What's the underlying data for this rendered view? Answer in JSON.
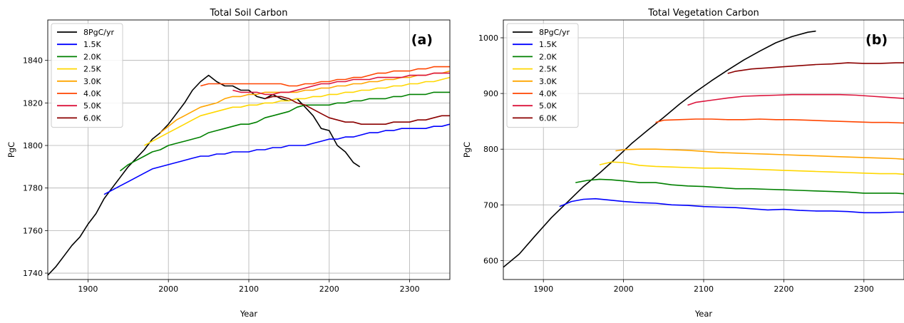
{
  "chart_data": [
    {
      "type": "line",
      "title": "Total Soil Carbon",
      "panel_label": "(a)",
      "xlabel": "Year",
      "ylabel": "PgC",
      "xlim": [
        1850,
        2350
      ],
      "ylim": [
        1737,
        1859
      ],
      "xticks": [
        1900,
        2000,
        2100,
        2200,
        2300
      ],
      "yticks": [
        1740,
        1760,
        1780,
        1800,
        1820,
        1840
      ],
      "grid": true,
      "legend_position": "top-left",
      "series": [
        {
          "name": "8PgC/yr",
          "color": "#000000",
          "x": [
            1850,
            1860,
            1870,
            1880,
            1890,
            1900,
            1910,
            1920,
            1930,
            1940,
            1950,
            1960,
            1970,
            1980,
            1990,
            2000,
            2010,
            2020,
            2030,
            2040,
            2050,
            2060,
            2070,
            2080,
            2090,
            2100,
            2110,
            2120,
            2130,
            2140,
            2150,
            2160,
            2170,
            2180,
            2190,
            2200,
            2210,
            2220,
            2230,
            2238
          ],
          "y": [
            1739,
            1743,
            1748,
            1753,
            1757,
            1763,
            1768,
            1775,
            1780,
            1785,
            1790,
            1794,
            1798,
            1803,
            1806,
            1810,
            1815,
            1820,
            1826,
            1830,
            1833,
            1830,
            1828,
            1828,
            1826,
            1826,
            1823,
            1822,
            1824,
            1822,
            1821,
            1822,
            1818,
            1814,
            1808,
            1807,
            1800,
            1797,
            1792,
            1790
          ]
        },
        {
          "name": "1.5K",
          "color": "#0000ff",
          "x": [
            1920,
            1930,
            1940,
            1950,
            1960,
            1970,
            1980,
            1990,
            2000,
            2010,
            2020,
            2030,
            2040,
            2050,
            2060,
            2070,
            2080,
            2090,
            2100,
            2110,
            2120,
            2130,
            2140,
            2150,
            2160,
            2170,
            2180,
            2190,
            2200,
            2210,
            2220,
            2230,
            2240,
            2250,
            2260,
            2270,
            2280,
            2290,
            2300,
            2310,
            2320,
            2330,
            2340,
            2350
          ],
          "y": [
            1777,
            1779,
            1781,
            1783,
            1785,
            1787,
            1789,
            1790,
            1791,
            1792,
            1793,
            1794,
            1795,
            1795,
            1796,
            1796,
            1797,
            1797,
            1797,
            1798,
            1798,
            1799,
            1799,
            1800,
            1800,
            1800,
            1801,
            1802,
            1803,
            1803,
            1804,
            1804,
            1805,
            1806,
            1806,
            1807,
            1807,
            1808,
            1808,
            1808,
            1808,
            1809,
            1809,
            1810
          ]
        },
        {
          "name": "2.0K",
          "color": "#008000",
          "x": [
            1940,
            1950,
            1960,
            1970,
            1980,
            1990,
            2000,
            2010,
            2020,
            2030,
            2040,
            2050,
            2060,
            2070,
            2080,
            2090,
            2100,
            2110,
            2120,
            2130,
            2140,
            2150,
            2160,
            2170,
            2180,
            2190,
            2200,
            2210,
            2220,
            2230,
            2240,
            2250,
            2260,
            2270,
            2280,
            2290,
            2300,
            2310,
            2320,
            2330,
            2340,
            2350
          ],
          "y": [
            1788,
            1791,
            1793,
            1795,
            1797,
            1798,
            1800,
            1801,
            1802,
            1803,
            1804,
            1806,
            1807,
            1808,
            1809,
            1810,
            1810,
            1811,
            1813,
            1814,
            1815,
            1816,
            1818,
            1819,
            1819,
            1819,
            1819,
            1820,
            1820,
            1821,
            1821,
            1822,
            1822,
            1822,
            1823,
            1823,
            1824,
            1824,
            1824,
            1825,
            1825,
            1825
          ]
        },
        {
          "name": "2.5K",
          "color": "#ffd700",
          "x": [
            1970,
            1980,
            1990,
            2000,
            2010,
            2020,
            2030,
            2040,
            2050,
            2060,
            2070,
            2080,
            2090,
            2100,
            2110,
            2120,
            2130,
            2140,
            2150,
            2160,
            2170,
            2180,
            2190,
            2200,
            2210,
            2220,
            2230,
            2240,
            2250,
            2260,
            2270,
            2280,
            2290,
            2300,
            2310,
            2320,
            2330,
            2340,
            2350
          ],
          "y": [
            1800,
            1802,
            1804,
            1806,
            1808,
            1810,
            1812,
            1814,
            1815,
            1816,
            1817,
            1818,
            1818,
            1819,
            1819,
            1820,
            1820,
            1821,
            1821,
            1822,
            1822,
            1823,
            1823,
            1824,
            1824,
            1825,
            1825,
            1826,
            1826,
            1827,
            1827,
            1828,
            1828,
            1829,
            1829,
            1830,
            1830,
            1831,
            1832
          ]
        },
        {
          "name": "3.0K",
          "color": "#ffa500",
          "x": [
            1990,
            2000,
            2010,
            2020,
            2030,
            2040,
            2050,
            2060,
            2070,
            2080,
            2090,
            2100,
            2110,
            2120,
            2130,
            2140,
            2150,
            2160,
            2170,
            2180,
            2190,
            2200,
            2210,
            2220,
            2230,
            2240,
            2250,
            2260,
            2270,
            2280,
            2290,
            2300,
            2310,
            2320,
            2330,
            2340,
            2350
          ],
          "y": [
            1806,
            1809,
            1812,
            1814,
            1816,
            1818,
            1819,
            1820,
            1822,
            1823,
            1823,
            1824,
            1824,
            1825,
            1825,
            1825,
            1825,
            1825,
            1826,
            1826,
            1827,
            1827,
            1828,
            1828,
            1829,
            1829,
            1830,
            1830,
            1831,
            1831,
            1832,
            1832,
            1833,
            1833,
            1834,
            1834,
            1835
          ]
        },
        {
          "name": "4.0K",
          "color": "#ff4500",
          "x": [
            2040,
            2050,
            2060,
            2070,
            2080,
            2090,
            2100,
            2110,
            2120,
            2130,
            2140,
            2150,
            2160,
            2170,
            2180,
            2190,
            2200,
            2210,
            2220,
            2230,
            2240,
            2250,
            2260,
            2270,
            2280,
            2290,
            2300,
            2310,
            2320,
            2330,
            2340,
            2350
          ],
          "y": [
            1828,
            1829,
            1829,
            1829,
            1829,
            1829,
            1829,
            1829,
            1829,
            1829,
            1829,
            1828,
            1828,
            1829,
            1829,
            1830,
            1830,
            1831,
            1831,
            1832,
            1832,
            1833,
            1834,
            1834,
            1835,
            1835,
            1835,
            1836,
            1836,
            1837,
            1837,
            1837
          ]
        },
        {
          "name": "5.0K",
          "color": "#dc143c",
          "x": [
            2080,
            2090,
            2100,
            2110,
            2120,
            2130,
            2140,
            2150,
            2160,
            2170,
            2180,
            2190,
            2200,
            2210,
            2220,
            2230,
            2240,
            2250,
            2260,
            2270,
            2280,
            2290,
            2300,
            2310,
            2320,
            2330,
            2340,
            2350
          ],
          "y": [
            1826,
            1825,
            1825,
            1825,
            1824,
            1824,
            1825,
            1825,
            1826,
            1827,
            1828,
            1829,
            1829,
            1830,
            1830,
            1831,
            1831,
            1831,
            1832,
            1832,
            1832,
            1832,
            1833,
            1833,
            1833,
            1834,
            1834,
            1834
          ]
        },
        {
          "name": "6.0K",
          "color": "#8b0000",
          "x": [
            2120,
            2130,
            2140,
            2150,
            2160,
            2170,
            2180,
            2190,
            2200,
            2210,
            2220,
            2230,
            2240,
            2250,
            2260,
            2270,
            2280,
            2290,
            2300,
            2310,
            2320,
            2330,
            2340,
            2350
          ],
          "y": [
            1822,
            1823,
            1823,
            1822,
            1820,
            1819,
            1817,
            1815,
            1813,
            1812,
            1811,
            1811,
            1810,
            1810,
            1810,
            1810,
            1811,
            1811,
            1811,
            1812,
            1812,
            1813,
            1814,
            1814
          ]
        }
      ]
    },
    {
      "type": "line",
      "title": "Total Vegetation Carbon",
      "panel_label": "(b)",
      "xlabel": "Year",
      "ylabel": "PgC",
      "xlim": [
        1850,
        2350
      ],
      "ylim": [
        566,
        1032
      ],
      "xticks": [
        1900,
        2000,
        2100,
        2200,
        2300
      ],
      "yticks": [
        600,
        700,
        800,
        900,
        1000
      ],
      "grid": true,
      "legend_position": "top-left",
      "series": [
        {
          "name": "8PgC/yr",
          "color": "#000000",
          "x": [
            1850,
            1870,
            1890,
            1910,
            1930,
            1950,
            1970,
            1990,
            2010,
            2030,
            2050,
            2070,
            2090,
            2110,
            2130,
            2150,
            2170,
            2190,
            2210,
            2230,
            2240
          ],
          "y": [
            588,
            612,
            645,
            677,
            705,
            733,
            757,
            783,
            810,
            834,
            857,
            881,
            903,
            923,
            942,
            960,
            976,
            991,
            1002,
            1010,
            1012
          ]
        },
        {
          "name": "1.5K",
          "color": "#0000ff",
          "x": [
            1920,
            1935,
            1950,
            1965,
            1980,
            2000,
            2020,
            2040,
            2060,
            2080,
            2100,
            2120,
            2140,
            2160,
            2180,
            2200,
            2220,
            2240,
            2260,
            2280,
            2300,
            2320,
            2340,
            2350
          ],
          "y": [
            697,
            706,
            710,
            711,
            709,
            706,
            704,
            703,
            700,
            699,
            697,
            696,
            695,
            693,
            691,
            692,
            690,
            689,
            689,
            688,
            686,
            686,
            687,
            687
          ]
        },
        {
          "name": "2.0K",
          "color": "#008000",
          "x": [
            1940,
            1955,
            1970,
            1985,
            2000,
            2020,
            2040,
            2060,
            2080,
            2100,
            2120,
            2140,
            2160,
            2180,
            2200,
            2220,
            2240,
            2260,
            2280,
            2300,
            2320,
            2340,
            2350
          ],
          "y": [
            740,
            744,
            746,
            745,
            743,
            740,
            740,
            736,
            734,
            733,
            731,
            729,
            729,
            728,
            727,
            726,
            725,
            724,
            723,
            721,
            721,
            721,
            720
          ]
        },
        {
          "name": "2.5K",
          "color": "#ffd700",
          "x": [
            1970,
            1985,
            2000,
            2020,
            2040,
            2060,
            2080,
            2100,
            2120,
            2140,
            2160,
            2180,
            2200,
            2220,
            2240,
            2260,
            2280,
            2300,
            2320,
            2340,
            2350
          ],
          "y": [
            772,
            777,
            776,
            771,
            769,
            768,
            767,
            766,
            766,
            765,
            764,
            763,
            762,
            761,
            760,
            759,
            758,
            757,
            756,
            756,
            755
          ]
        },
        {
          "name": "3.0K",
          "color": "#ffa500",
          "x": [
            1990,
            2000,
            2020,
            2040,
            2060,
            2080,
            2100,
            2120,
            2140,
            2160,
            2180,
            2200,
            2220,
            2240,
            2260,
            2280,
            2300,
            2320,
            2340,
            2350
          ],
          "y": [
            797,
            799,
            800,
            800,
            799,
            798,
            796,
            794,
            793,
            792,
            791,
            790,
            789,
            788,
            787,
            786,
            785,
            784,
            783,
            782
          ]
        },
        {
          "name": "4.0K",
          "color": "#ff4500",
          "x": [
            2040,
            2050,
            2070,
            2090,
            2110,
            2130,
            2150,
            2170,
            2190,
            2210,
            2230,
            2250,
            2270,
            2290,
            2310,
            2330,
            2350
          ],
          "y": [
            848,
            852,
            853,
            854,
            854,
            853,
            853,
            854,
            853,
            853,
            852,
            851,
            850,
            849,
            848,
            848,
            847
          ]
        },
        {
          "name": "5.0K",
          "color": "#dc143c",
          "x": [
            2080,
            2090,
            2110,
            2130,
            2150,
            2170,
            2190,
            2210,
            2230,
            2250,
            2270,
            2290,
            2310,
            2330,
            2350
          ],
          "y": [
            879,
            884,
            888,
            892,
            895,
            896,
            897,
            898,
            898,
            898,
            898,
            897,
            895,
            893,
            891
          ]
        },
        {
          "name": "6.0K",
          "color": "#8b0000",
          "x": [
            2130,
            2140,
            2160,
            2180,
            2200,
            2220,
            2240,
            2260,
            2280,
            2300,
            2320,
            2340,
            2350
          ],
          "y": [
            936,
            940,
            944,
            946,
            948,
            950,
            952,
            953,
            955,
            954,
            954,
            955,
            955
          ]
        }
      ]
    }
  ]
}
